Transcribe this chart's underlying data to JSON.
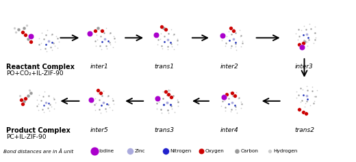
{
  "background_color": "#ffffff",
  "row1_labels": [
    "Reactant Complex",
    "PO+CO₂+IL-ZIF-90",
    "inter1",
    "trans1",
    "inter2",
    "inter3"
  ],
  "row2_labels": [
    "Product Complex",
    "PC+IL-ZIF-90",
    "inter5",
    "trans3",
    "inter4",
    "trans2"
  ],
  "legend_note": "Bond distances are in Å unit",
  "legend_items": [
    {
      "label": "Iodine",
      "color": "#aa00cc",
      "ms": 9
    },
    {
      "label": "Zinc",
      "color": "#aaaadd",
      "ms": 7
    },
    {
      "label": "Nitrogen",
      "color": "#2222cc",
      "ms": 7
    },
    {
      "label": "Oxygen",
      "color": "#cc0000",
      "ms": 6
    },
    {
      "label": "Carbon",
      "color": "#999999",
      "ms": 5
    },
    {
      "label": "Hydrogen",
      "color": "#cccccc",
      "ms": 4
    }
  ],
  "fig_width": 5.2,
  "fig_height": 2.37,
  "dpi": 100,
  "label_fontsize": 6.5,
  "bold_fontsize": 7.0,
  "legend_fontsize": 5.2
}
